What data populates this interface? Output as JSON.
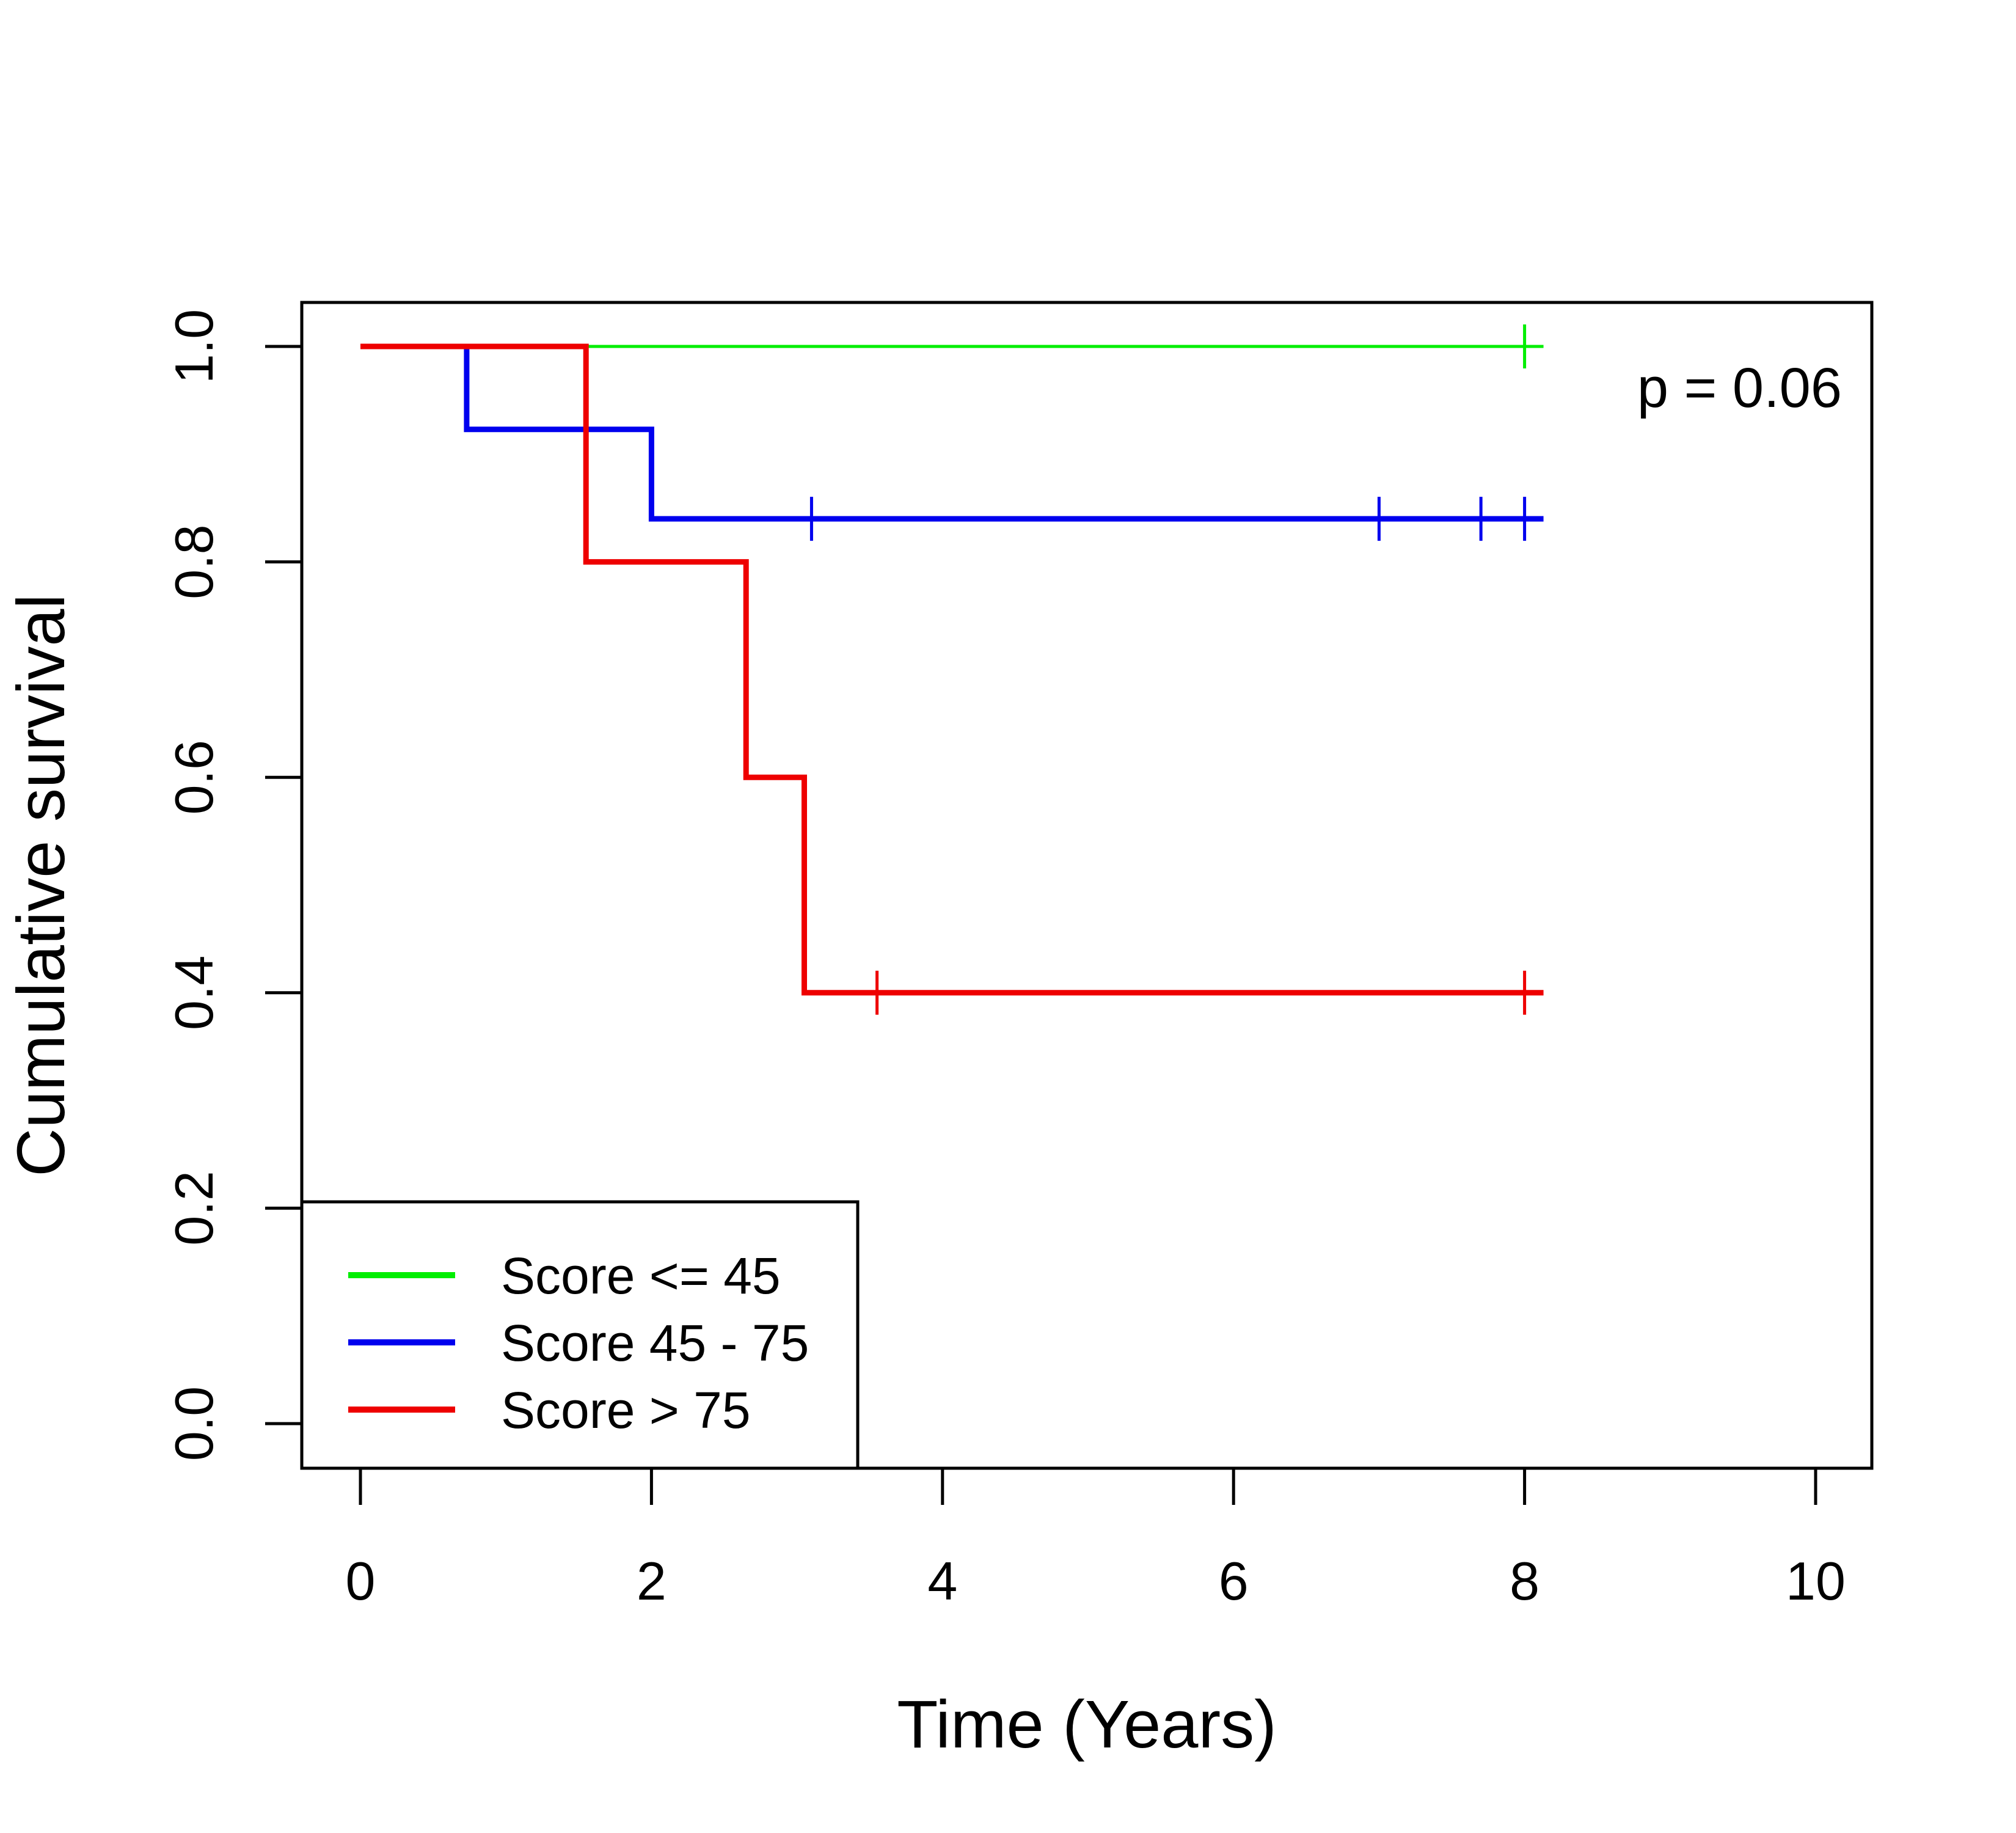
{
  "chart_data": {
    "type": "line",
    "subtype": "kaplan-meier step curves",
    "title": "",
    "xlabel": "Time (Years)",
    "ylabel": "Cumulative survival",
    "xlim": [
      0,
      10
    ],
    "ylim": [
      0,
      1
    ],
    "xticks": [
      0,
      2,
      4,
      6,
      8,
      10
    ],
    "yticks": [
      0.0,
      0.2,
      0.4,
      0.6,
      0.8,
      1.0
    ],
    "xtick_labels": [
      "0",
      "2",
      "4",
      "6",
      "8",
      "10"
    ],
    "ytick_labels": [
      "0.0",
      "0.2",
      "0.4",
      "0.6",
      "0.8",
      "1.0"
    ],
    "grid": false,
    "legend_position": "bottom-left",
    "annotation": "p = 0.06",
    "series": [
      {
        "name": "Score <= 45",
        "color": "#00ee00",
        "steps": [
          [
            0,
            1.0
          ],
          [
            8.13,
            1.0
          ]
        ],
        "censor_times": [
          8.0
        ]
      },
      {
        "name": "Score 45 - 75",
        "color": "#0000ee",
        "steps": [
          [
            0,
            1.0
          ],
          [
            0.73,
            0.923
          ],
          [
            2.0,
            0.84
          ],
          [
            8.13,
            0.84
          ]
        ],
        "censor_times": [
          3.1,
          7.0,
          7.7,
          8.0
        ]
      },
      {
        "name": "Score > 75",
        "color": "#ee0000",
        "steps": [
          [
            0,
            1.0
          ],
          [
            1.55,
            0.8
          ],
          [
            2.65,
            0.6
          ],
          [
            3.05,
            0.4
          ],
          [
            8.13,
            0.4
          ]
        ],
        "censor_times": [
          3.55,
          8.0
        ]
      }
    ]
  }
}
